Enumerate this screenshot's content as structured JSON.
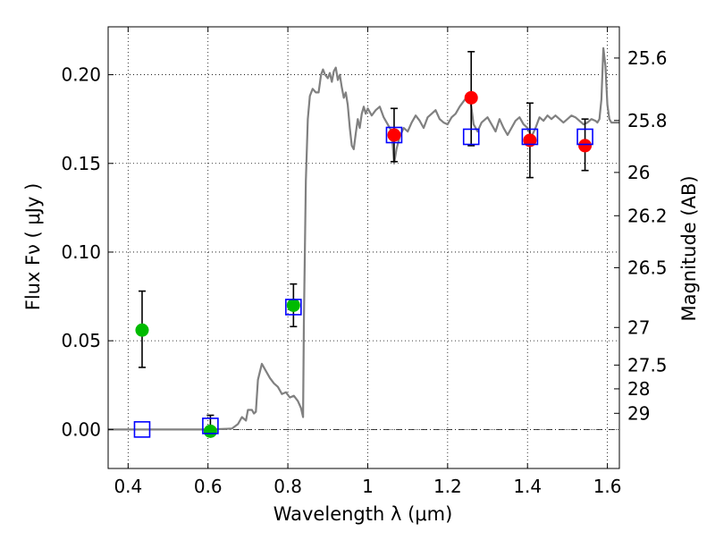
{
  "chart_data": {
    "type": "scatter",
    "xlabel": "Wavelength  λ (μm)",
    "ylabel": "Flux  Fν  ( μJy )",
    "y2label": "Magnitude (AB)",
    "xlim": [
      0.35,
      1.63
    ],
    "ylim": [
      -0.022,
      0.227
    ],
    "x_ticks": [
      {
        "v": 0.4,
        "label": "0.4"
      },
      {
        "v": 0.6,
        "label": "0.6"
      },
      {
        "v": 0.8,
        "label": "0.8"
      },
      {
        "v": 1.0,
        "label": "1"
      },
      {
        "v": 1.2,
        "label": "1.2"
      },
      {
        "v": 1.4,
        "label": "1.4"
      },
      {
        "v": 1.6,
        "label": "1.6"
      }
    ],
    "y_ticks": [
      {
        "v": 0.0,
        "label": "0.00"
      },
      {
        "v": 0.05,
        "label": "0.05"
      },
      {
        "v": 0.1,
        "label": "0.10"
      },
      {
        "v": 0.15,
        "label": "0.15"
      },
      {
        "v": 0.2,
        "label": "0.20"
      }
    ],
    "mag_ticks": [
      {
        "flux": 0.2094,
        "label": "25.6"
      },
      {
        "flux": 0.1742,
        "label": "25.8"
      },
      {
        "flux": 0.1449,
        "label": "26"
      },
      {
        "flux": 0.1205,
        "label": "26.2"
      },
      {
        "flux": 0.0912,
        "label": "26.5"
      },
      {
        "flux": 0.0575,
        "label": "27"
      },
      {
        "flux": 0.0363,
        "label": "27.5"
      },
      {
        "flux": 0.0229,
        "label": "28"
      },
      {
        "flux": 0.0091,
        "label": "29"
      }
    ],
    "grid": true,
    "zero_line": true,
    "series": [
      {
        "kind": "model_spectrum",
        "color": "#808080",
        "points": [
          [
            0.35,
            0.0
          ],
          [
            0.6,
            0.0
          ],
          [
            0.66,
            0.0005
          ],
          [
            0.675,
            0.003
          ],
          [
            0.685,
            0.007
          ],
          [
            0.695,
            0.005
          ],
          [
            0.7,
            0.011
          ],
          [
            0.71,
            0.011
          ],
          [
            0.715,
            0.009
          ],
          [
            0.72,
            0.01
          ],
          [
            0.725,
            0.028
          ],
          [
            0.735,
            0.037
          ],
          [
            0.745,
            0.033
          ],
          [
            0.755,
            0.029
          ],
          [
            0.765,
            0.026
          ],
          [
            0.775,
            0.024
          ],
          [
            0.785,
            0.02
          ],
          [
            0.795,
            0.021
          ],
          [
            0.805,
            0.018
          ],
          [
            0.815,
            0.019
          ],
          [
            0.825,
            0.016
          ],
          [
            0.833,
            0.012
          ],
          [
            0.838,
            0.007
          ],
          [
            0.84,
            0.06
          ],
          [
            0.845,
            0.14
          ],
          [
            0.85,
            0.175
          ],
          [
            0.855,
            0.188
          ],
          [
            0.862,
            0.192
          ],
          [
            0.87,
            0.19
          ],
          [
            0.877,
            0.19
          ],
          [
            0.883,
            0.2
          ],
          [
            0.888,
            0.203
          ],
          [
            0.893,
            0.2
          ],
          [
            0.9,
            0.198
          ],
          [
            0.905,
            0.201
          ],
          [
            0.91,
            0.196
          ],
          [
            0.915,
            0.202
          ],
          [
            0.92,
            0.204
          ],
          [
            0.925,
            0.197
          ],
          [
            0.93,
            0.2
          ],
          [
            0.935,
            0.193
          ],
          [
            0.94,
            0.187
          ],
          [
            0.945,
            0.19
          ],
          [
            0.95,
            0.183
          ],
          [
            0.955,
            0.17
          ],
          [
            0.96,
            0.16
          ],
          [
            0.965,
            0.158
          ],
          [
            0.97,
            0.167
          ],
          [
            0.975,
            0.175
          ],
          [
            0.98,
            0.17
          ],
          [
            0.985,
            0.178
          ],
          [
            0.99,
            0.182
          ],
          [
            0.995,
            0.178
          ],
          [
            1.0,
            0.181
          ],
          [
            1.01,
            0.177
          ],
          [
            1.02,
            0.18
          ],
          [
            1.03,
            0.182
          ],
          [
            1.04,
            0.176
          ],
          [
            1.05,
            0.172
          ],
          [
            1.06,
            0.168
          ],
          [
            1.066,
            0.15
          ],
          [
            1.072,
            0.158
          ],
          [
            1.08,
            0.165
          ],
          [
            1.09,
            0.17
          ],
          [
            1.1,
            0.168
          ],
          [
            1.11,
            0.173
          ],
          [
            1.12,
            0.177
          ],
          [
            1.13,
            0.174
          ],
          [
            1.14,
            0.17
          ],
          [
            1.15,
            0.176
          ],
          [
            1.16,
            0.178
          ],
          [
            1.17,
            0.18
          ],
          [
            1.18,
            0.175
          ],
          [
            1.19,
            0.173
          ],
          [
            1.2,
            0.172
          ],
          [
            1.21,
            0.176
          ],
          [
            1.22,
            0.178
          ],
          [
            1.23,
            0.182
          ],
          [
            1.24,
            0.185
          ],
          [
            1.25,
            0.188
          ],
          [
            1.258,
            0.184
          ],
          [
            1.265,
            0.172
          ],
          [
            1.275,
            0.168
          ],
          [
            1.285,
            0.173
          ],
          [
            1.3,
            0.176
          ],
          [
            1.31,
            0.172
          ],
          [
            1.32,
            0.168
          ],
          [
            1.33,
            0.175
          ],
          [
            1.34,
            0.17
          ],
          [
            1.35,
            0.166
          ],
          [
            1.36,
            0.17
          ],
          [
            1.37,
            0.174
          ],
          [
            1.38,
            0.176
          ],
          [
            1.39,
            0.172
          ],
          [
            1.4,
            0.17
          ],
          [
            1.41,
            0.165
          ],
          [
            1.42,
            0.17
          ],
          [
            1.43,
            0.176
          ],
          [
            1.44,
            0.174
          ],
          [
            1.45,
            0.177
          ],
          [
            1.46,
            0.175
          ],
          [
            1.47,
            0.177
          ],
          [
            1.48,
            0.175
          ],
          [
            1.49,
            0.173
          ],
          [
            1.5,
            0.175
          ],
          [
            1.51,
            0.177
          ],
          [
            1.52,
            0.176
          ],
          [
            1.53,
            0.174
          ],
          [
            1.54,
            0.172
          ],
          [
            1.55,
            0.173
          ],
          [
            1.56,
            0.175
          ],
          [
            1.57,
            0.174
          ],
          [
            1.575,
            0.173
          ],
          [
            1.58,
            0.175
          ],
          [
            1.585,
            0.186
          ],
          [
            1.59,
            0.215
          ],
          [
            1.595,
            0.205
          ],
          [
            1.6,
            0.183
          ],
          [
            1.605,
            0.175
          ],
          [
            1.61,
            0.173
          ],
          [
            1.62,
            0.173
          ],
          [
            1.63,
            0.173
          ]
        ]
      },
      {
        "kind": "measured_optical",
        "color": "#00bb00",
        "points": [
          {
            "x": 0.435,
            "y": 0.056,
            "err_lo": 0.035,
            "err_hi": 0.078
          },
          {
            "x": 0.606,
            "y": -0.001,
            "err_lo": -0.002,
            "err_hi": 0.008
          },
          {
            "x": 0.814,
            "y": 0.07,
            "err_lo": 0.058,
            "err_hi": 0.082
          }
        ]
      },
      {
        "kind": "measured_infrared",
        "color": "#ff0000",
        "points": [
          {
            "x": 1.066,
            "y": 0.166,
            "err_lo": 0.151,
            "err_hi": 0.181
          },
          {
            "x": 1.259,
            "y": 0.187,
            "err_lo": 0.16,
            "err_hi": 0.213
          },
          {
            "x": 1.406,
            "y": 0.163,
            "err_lo": 0.142,
            "err_hi": 0.184
          },
          {
            "x": 1.544,
            "y": 0.16,
            "err_lo": 0.146,
            "err_hi": 0.175
          }
        ]
      },
      {
        "kind": "model_bandpass",
        "color": "#0000ff",
        "points": [
          {
            "x": 0.435,
            "y": 0.0
          },
          {
            "x": 0.606,
            "y": 0.002
          },
          {
            "x": 0.814,
            "y": 0.069
          },
          {
            "x": 1.066,
            "y": 0.166
          },
          {
            "x": 1.259,
            "y": 0.165
          },
          {
            "x": 1.406,
            "y": 0.165
          },
          {
            "x": 1.544,
            "y": 0.165
          }
        ]
      }
    ]
  }
}
